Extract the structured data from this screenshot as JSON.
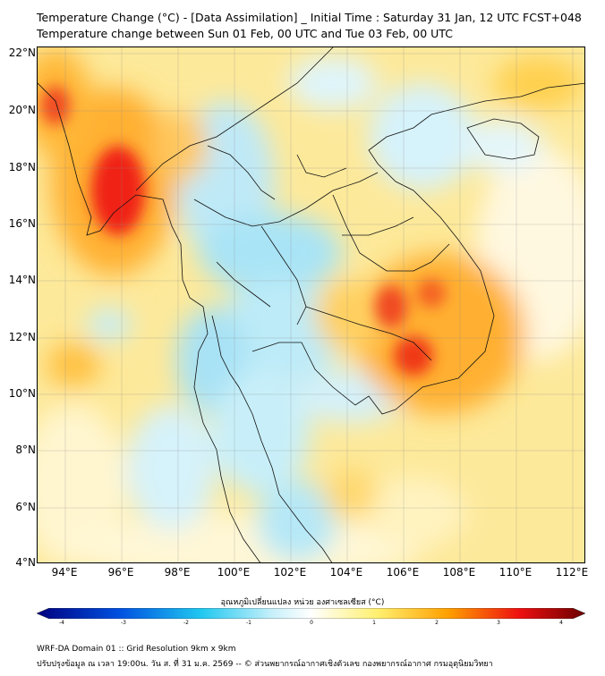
{
  "title": {
    "line1": "Temperature Change (°C) - [Data Assimilation] _ Initial Time : Saturday 31 Jan, 12 UTC FCST+048",
    "line2": "Temperature change between Sun 01 Feb, 00 UTC and Tue 03 Feb, 00 UTC"
  },
  "axes": {
    "lat_labels": [
      "22°N",
      "20°N",
      "18°N",
      "16°N",
      "14°N",
      "12°N",
      "10°N",
      "8°N",
      "6°N",
      "4°N"
    ],
    "lon_labels": [
      "94°E",
      "96°E",
      "98°E",
      "100°E",
      "102°E",
      "104°E",
      "106°E",
      "108°E",
      "110°E",
      "112°E"
    ],
    "lat_range": [
      4,
      22.2
    ],
    "lon_range": [
      93,
      112.5
    ]
  },
  "colorbar": {
    "title": "อุณหภูมิเปลี่ยนแปลง หน่วย องศาเซลเซียส (°C)",
    "ticks": [
      "-4",
      "-3",
      "-2",
      "-1",
      "0",
      "1",
      "2",
      "3",
      "4"
    ],
    "range": [
      -4,
      4
    ],
    "colors": {
      "min": "#00007f",
      "blue": "#0050e0",
      "cyan": "#20c8f0",
      "light": "#c8f0fa",
      "zero": "#ffffff",
      "yellow": "#fff070",
      "orange": "#ffa000",
      "red": "#ee1010",
      "max": "#6a0000"
    }
  },
  "footer": {
    "line1": "WRF-DA Domain 01 :: Grid Resolution 9km x 9km",
    "line2": "ปรับปรุงข้อมูล ณ เวลา 19:00น. วัน ส. ที่ 31 ม.ค. 2569 -- © ส่วนพยากรณ์อากาศเชิงตัวเลข กองพยากรณ์อากาศ กรมอุตุนิยมวิทยา"
  }
}
